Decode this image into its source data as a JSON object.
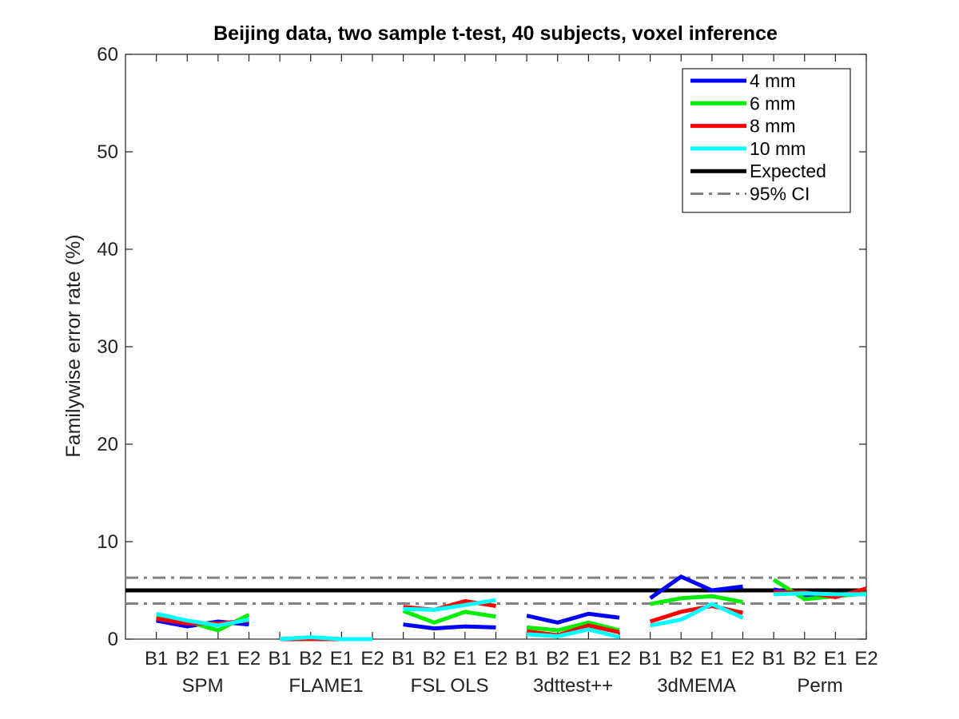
{
  "chart_data": {
    "type": "line",
    "title": "Beijing data, two sample t-test, 40 subjects, voxel inference",
    "ylabel": "Familywise error rate (%)",
    "xlabel": "",
    "ylim": [
      0,
      60
    ],
    "yticks": [
      0,
      10,
      20,
      30,
      40,
      50,
      60
    ],
    "grid": false,
    "legend_position": "top-right",
    "xtick_labels": [
      "B1",
      "B2",
      "E1",
      "E2",
      "B1",
      "B2",
      "E1",
      "E2",
      "B1",
      "B2",
      "E1",
      "E2",
      "B1",
      "B2",
      "E1",
      "E2",
      "B1",
      "B2",
      "E1",
      "E2",
      "B1",
      "B2",
      "E1",
      "E2"
    ],
    "groups": [
      "SPM",
      "FLAME1",
      "FSL OLS",
      "3dttest++",
      "3dMEMA",
      "Perm"
    ],
    "series": [
      {
        "name": "4 mm",
        "color": "#0000ff",
        "segments": [
          [
            1.9,
            1.3,
            1.8,
            1.5
          ],
          [
            0,
            0,
            0,
            0
          ],
          [
            1.5,
            1.1,
            1.3,
            1.2
          ],
          [
            2.4,
            1.7,
            2.6,
            2.2
          ],
          [
            4.2,
            6.4,
            5.0,
            5.4
          ],
          [
            5.1,
            4.5,
            4.5,
            4.7
          ]
        ]
      },
      {
        "name": "6 mm",
        "color": "#00ee00",
        "segments": [
          [
            2.3,
            1.8,
            0.9,
            2.5
          ],
          [
            0,
            0,
            0,
            0
          ],
          [
            2.9,
            1.7,
            2.8,
            2.3
          ],
          [
            1.2,
            0.9,
            1.7,
            0.9
          ],
          [
            3.6,
            4.2,
            4.4,
            3.8
          ],
          [
            6.1,
            4.1,
            4.4,
            4.7
          ]
        ]
      },
      {
        "name": "8 mm",
        "color": "#ff0000",
        "segments": [
          [
            2.1,
            1.6,
            1.6,
            1.9
          ],
          [
            0,
            0,
            0,
            0
          ],
          [
            3.3,
            3.0,
            3.9,
            3.4
          ],
          [
            0.8,
            0.4,
            1.4,
            0.7
          ],
          [
            1.8,
            2.8,
            3.4,
            2.7
          ],
          [
            4.8,
            4.8,
            4.3,
            5.2
          ]
        ]
      },
      {
        "name": "10 mm",
        "color": "#00ffff",
        "segments": [
          [
            2.6,
            1.9,
            1.4,
            2.0
          ],
          [
            0,
            0.2,
            0,
            0
          ],
          [
            3.1,
            3.0,
            3.5,
            4.0
          ],
          [
            0.5,
            0.3,
            1.0,
            0.2
          ],
          [
            1.4,
            2.0,
            3.6,
            2.2
          ],
          [
            4.6,
            4.7,
            4.6,
            4.6
          ]
        ]
      }
    ],
    "reference_lines": [
      {
        "name": "Expected",
        "value": 5.0,
        "color": "#000000",
        "style": "solid"
      },
      {
        "name": "95% CI",
        "values": [
          3.65,
          6.3
        ],
        "color": "#808080",
        "style": "dash-dot"
      }
    ]
  }
}
